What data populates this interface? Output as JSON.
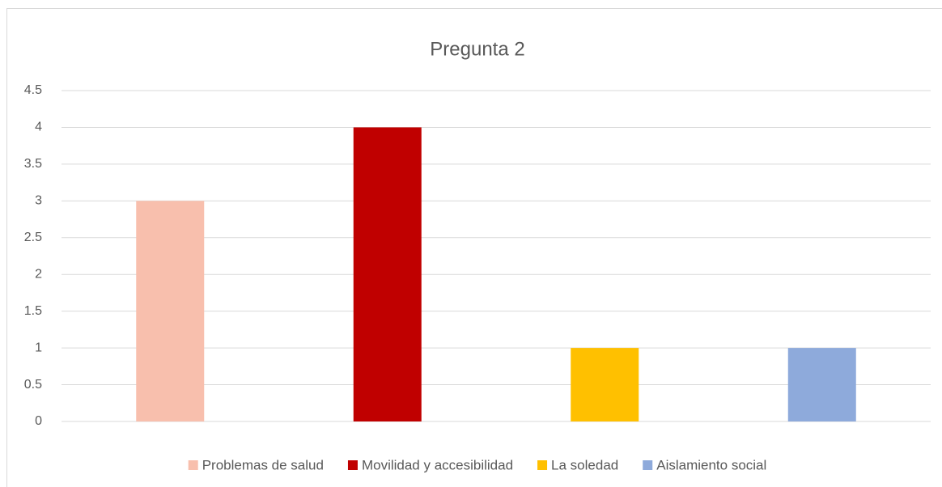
{
  "chart_data": {
    "type": "bar",
    "title": "Pregunta 2",
    "categories": [
      null
    ],
    "series": [
      {
        "name": "Problemas de salud",
        "color": "#f8bfad",
        "values": [
          3
        ]
      },
      {
        "name": "Movilidad y accesibilidad",
        "color": "#c00000",
        "values": [
          4
        ]
      },
      {
        "name": "La soledad",
        "color": "#ffc000",
        "values": [
          1
        ]
      },
      {
        "name": "Aislamiento social",
        "color": "#8eaadb",
        "values": [
          1
        ]
      }
    ],
    "ylim": [
      0,
      4.5
    ],
    "yticks": [
      0,
      0.5,
      1,
      1.5,
      2,
      2.5,
      3,
      3.5,
      4,
      4.5
    ],
    "grid": true,
    "legend": "bottom"
  }
}
